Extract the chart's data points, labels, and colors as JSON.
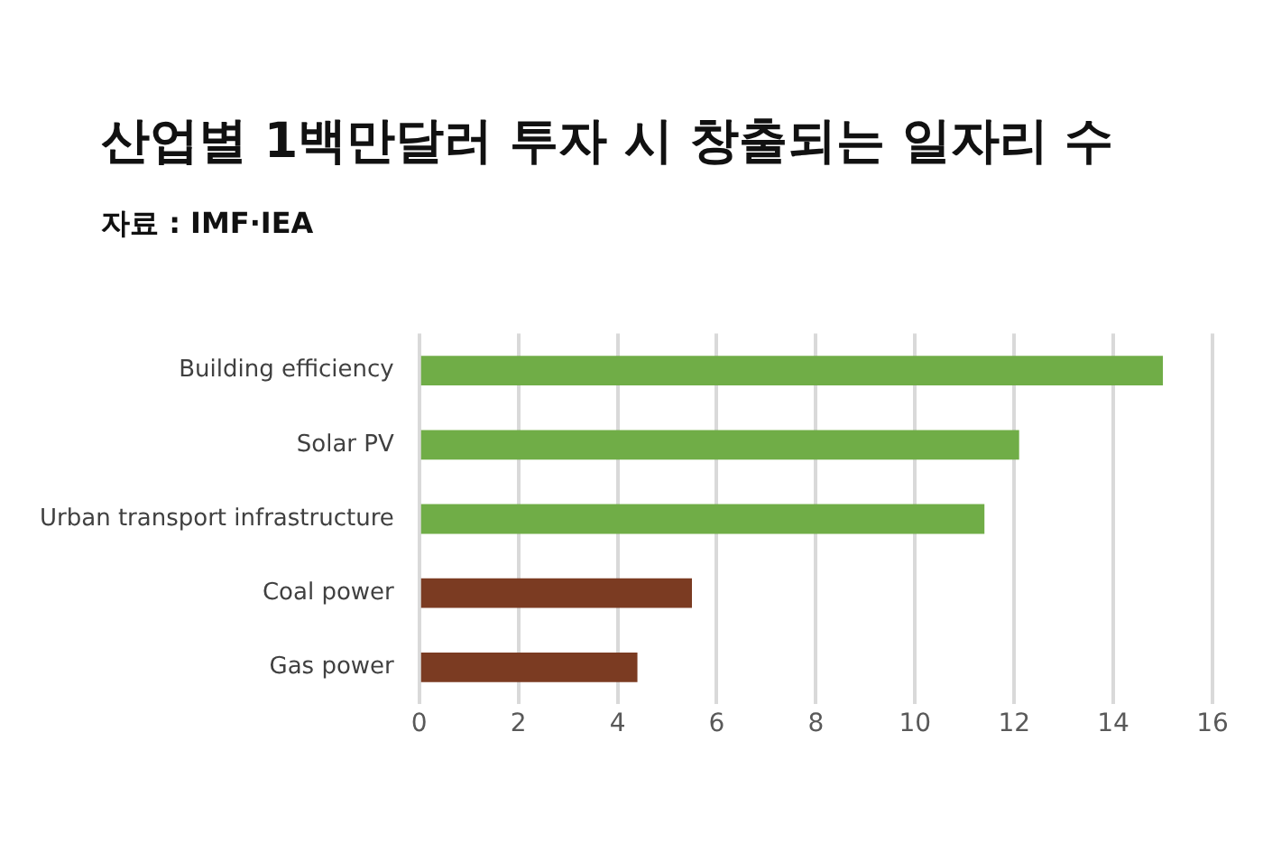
{
  "chart_data": {
    "type": "bar",
    "orientation": "horizontal",
    "title": "산업별 1백만달러 투자 시 창출되는 일자리 수",
    "subtitle": "자료 : IMF·IEA",
    "categories": [
      "Building efficiency",
      "Solar PV",
      "Urban transport infrastructure",
      "Coal power",
      "Gas power"
    ],
    "values": [
      15.0,
      12.1,
      11.4,
      5.5,
      4.4
    ],
    "colors": [
      "#70ad47",
      "#70ad47",
      "#70ad47",
      "#7b3b22",
      "#7b3b22"
    ],
    "xlim": [
      0,
      16
    ],
    "xticks": [
      0,
      2,
      4,
      6,
      8,
      10,
      12,
      14,
      16
    ],
    "grid": "x"
  }
}
